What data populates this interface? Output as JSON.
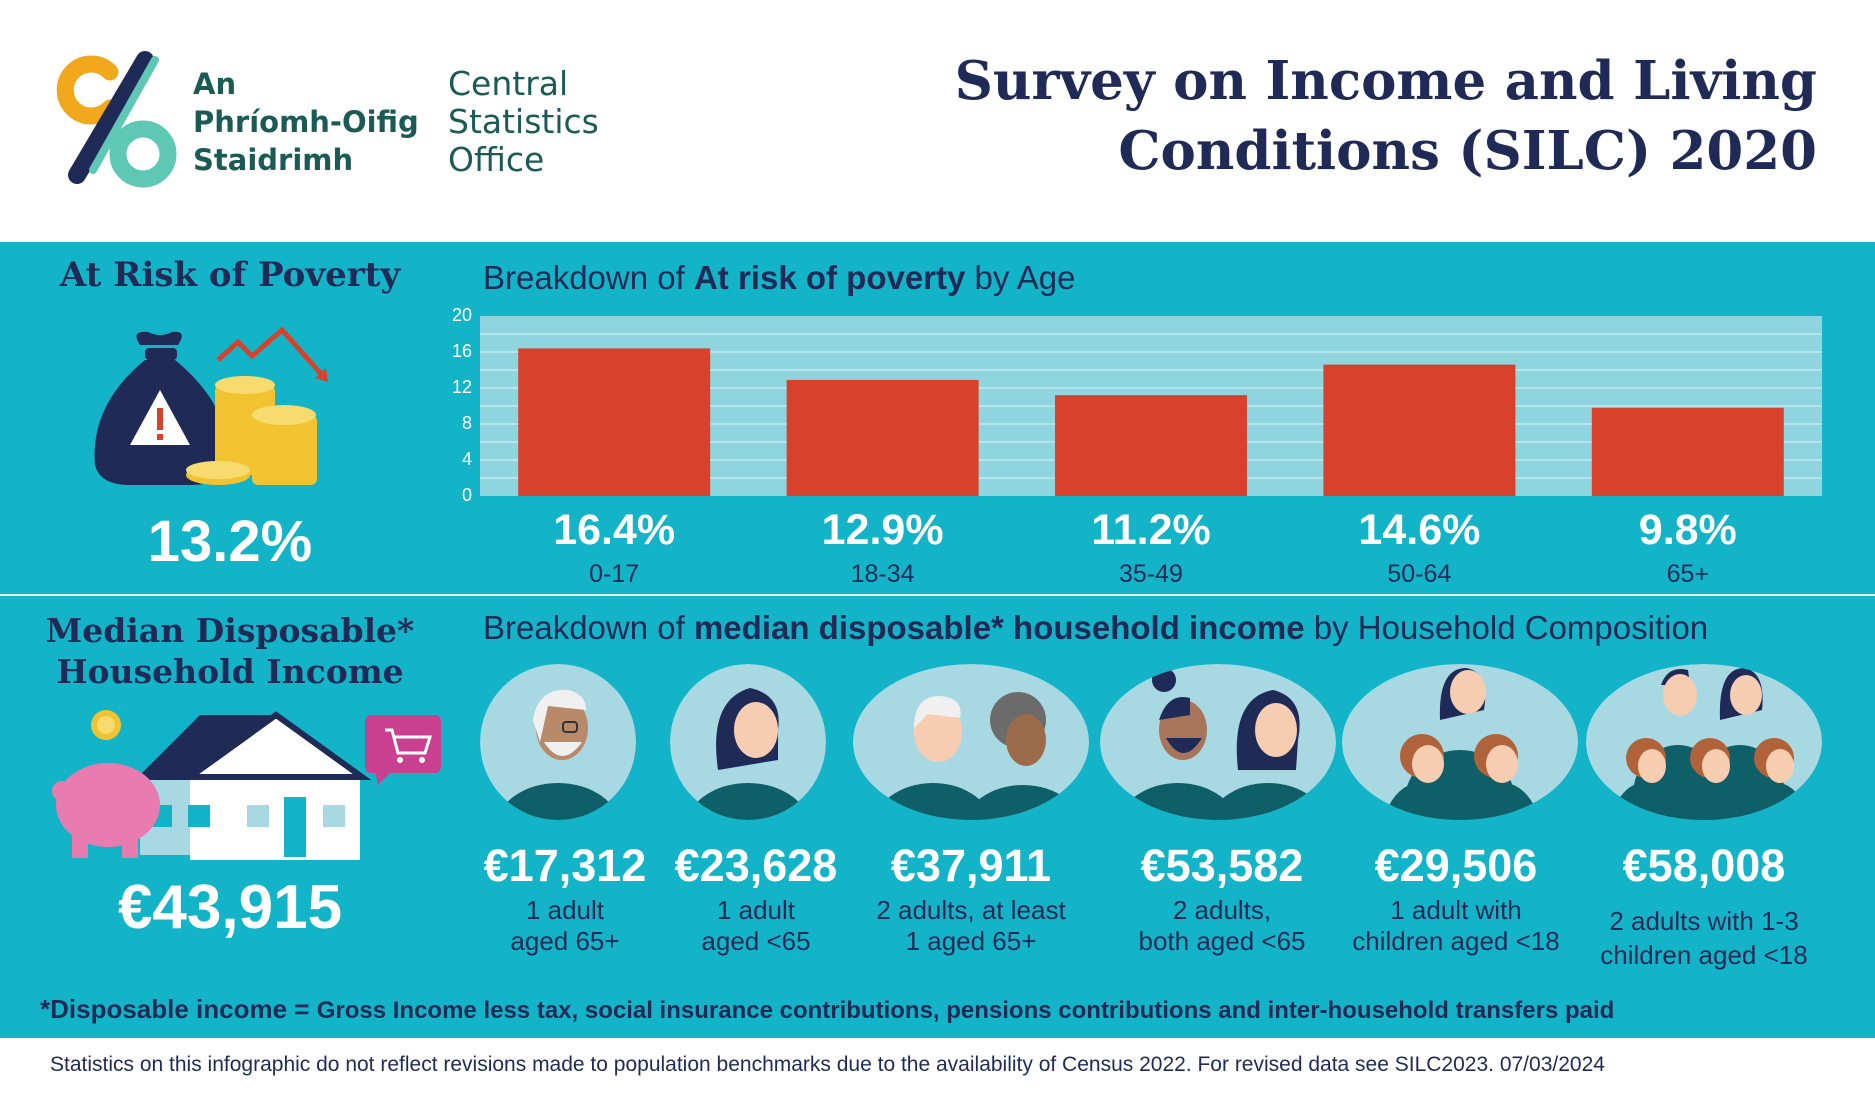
{
  "header": {
    "logo_irish": [
      "An",
      "Phríomh-Oifig",
      "Staidrimh"
    ],
    "logo_english": [
      "Central",
      "Statistics",
      "Office"
    ],
    "title_lines": [
      "Survey on Income and Living",
      "Conditions (SILC) 2020"
    ]
  },
  "poverty": {
    "title": "At Risk of Poverty",
    "value": "13.2%",
    "breakdown_prefix": "Breakdown of ",
    "breakdown_bold": "At risk of poverty",
    "breakdown_suffix": " by Age"
  },
  "income": {
    "title_lines": [
      "Median Disposable*",
      "Household Income"
    ],
    "value": "€43,915",
    "breakdown_prefix": "Breakdown of ",
    "breakdown_bold": "median disposable* household income",
    "breakdown_suffix": " by Household Composition",
    "households": [
      {
        "value": "€17,312",
        "label_lines": [
          "1 adult",
          "aged 65+"
        ]
      },
      {
        "value": "€23,628",
        "label_lines": [
          "1 adult",
          "aged <65"
        ]
      },
      {
        "value": "€37,911",
        "label_lines": [
          "2 adults, at least",
          "1 aged 65+"
        ]
      },
      {
        "value": "€53,582",
        "label_lines": [
          "2 adults,",
          "both aged <65"
        ]
      },
      {
        "value": "€29,506",
        "label_lines": [
          "1 adult with",
          "children aged <18"
        ]
      },
      {
        "value": "€58,008",
        "label_lines": [
          "2 adults with 1-3",
          "children aged <18"
        ]
      }
    ]
  },
  "footnote": {
    "bold": "*Disposable income = ",
    "text": " Gross Income less tax, social insurance contributions, pensions contributions and inter-household transfers paid"
  },
  "footer": {
    "text": "Statistics on this infographic do not reflect revisions made to population benchmarks due to the availability of Census 2022. For revised data see SILC2023. 07/03/2024"
  },
  "colors": {
    "teal": "#13b4c8",
    "navy": "#1f2a57",
    "bar": "#d8412b",
    "plot_bg": "#8fd5e0"
  },
  "chart_data": {
    "type": "bar",
    "categories": [
      "0-17",
      "18-34",
      "35-49",
      "50-64",
      "65+"
    ],
    "values": [
      16.4,
      12.9,
      11.2,
      14.6,
      9.8
    ],
    "value_labels": [
      "16.4%",
      "12.9%",
      "11.2%",
      "14.6%",
      "9.8%"
    ],
    "yticks": [
      0,
      4,
      8,
      12,
      16,
      20
    ],
    "ylim": [
      0,
      20
    ],
    "grid": true,
    "title": ""
  }
}
